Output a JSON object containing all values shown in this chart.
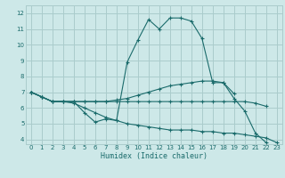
{
  "xlabel": "Humidex (Indice chaleur)",
  "background_color": "#cde8e8",
  "grid_color": "#aacccc",
  "line_color": "#1a6b6b",
  "xlim": [
    -0.5,
    23.5
  ],
  "ylim": [
    3.7,
    12.5
  ],
  "xticks": [
    0,
    1,
    2,
    3,
    4,
    5,
    6,
    7,
    8,
    9,
    10,
    11,
    12,
    13,
    14,
    15,
    16,
    17,
    18,
    19,
    20,
    21,
    22,
    23
  ],
  "yticks": [
    4,
    5,
    6,
    7,
    8,
    9,
    10,
    11,
    12
  ],
  "lines": [
    {
      "x": [
        0,
        1,
        2,
        3,
        4,
        5,
        6,
        7,
        8,
        9,
        10,
        11,
        12,
        13,
        14,
        15,
        16,
        17,
        18,
        19,
        20,
        21,
        22
      ],
      "y": [
        7.0,
        6.7,
        6.4,
        6.4,
        6.4,
        5.7,
        5.1,
        5.3,
        5.2,
        8.9,
        10.3,
        11.6,
        11.0,
        11.7,
        11.7,
        11.5,
        10.4,
        7.6,
        7.6,
        6.6,
        5.8,
        4.4,
        3.8
      ]
    },
    {
      "x": [
        0,
        1,
        2,
        3,
        4,
        5,
        6,
        7,
        8,
        9,
        10,
        11,
        12,
        13,
        14,
        15,
        16,
        17,
        18,
        19
      ],
      "y": [
        7.0,
        6.7,
        6.4,
        6.4,
        6.4,
        6.4,
        6.4,
        6.4,
        6.5,
        6.6,
        6.8,
        7.0,
        7.2,
        7.4,
        7.5,
        7.6,
        7.7,
        7.7,
        7.6,
        6.9
      ]
    },
    {
      "x": [
        0,
        1,
        2,
        3,
        4,
        5,
        6,
        7,
        8,
        9,
        10,
        11,
        12,
        13,
        14,
        15,
        16,
        17,
        18,
        19,
        20,
        21,
        22
      ],
      "y": [
        7.0,
        6.7,
        6.4,
        6.4,
        6.4,
        6.4,
        6.4,
        6.4,
        6.4,
        6.4,
        6.4,
        6.4,
        6.4,
        6.4,
        6.4,
        6.4,
        6.4,
        6.4,
        6.4,
        6.4,
        6.4,
        6.3,
        6.1
      ]
    },
    {
      "x": [
        0,
        1,
        2,
        3,
        4,
        5,
        6,
        7,
        8,
        9,
        10,
        11,
        12,
        13,
        14,
        15,
        16,
        17,
        18,
        19,
        20,
        21,
        22,
        23
      ],
      "y": [
        7.0,
        6.7,
        6.4,
        6.4,
        6.3,
        6.0,
        5.7,
        5.4,
        5.2,
        5.0,
        4.9,
        4.8,
        4.7,
        4.6,
        4.6,
        4.6,
        4.5,
        4.5,
        4.4,
        4.4,
        4.3,
        4.2,
        4.1,
        3.8
      ]
    }
  ]
}
